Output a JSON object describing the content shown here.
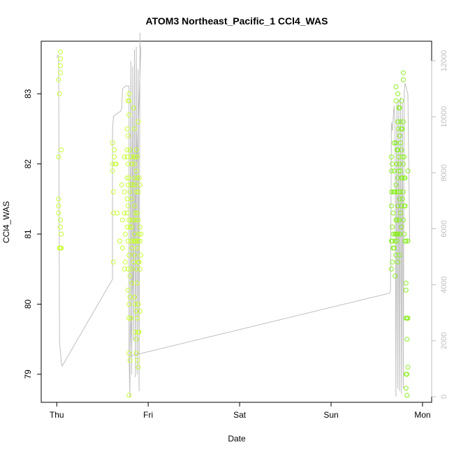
{
  "chart_data": {
    "type": "scatter",
    "title": "ATOM3 Northeast_Pacific_1 CCl4_WAS",
    "xlabel": "Date",
    "ylabel": "CCl4_WAS",
    "y2label": "",
    "x_ticks": [
      "Thu",
      "Fri",
      "Sat",
      "Sun",
      "Mon"
    ],
    "x_range_days": [
      -0.17,
      4.1
    ],
    "ylim": [
      78.6,
      83.75
    ],
    "y_ticks": [
      79,
      80,
      81,
      82,
      83
    ],
    "y2lim": [
      -200,
      12700
    ],
    "y2_ticks": [
      0,
      2000,
      4000,
      6000,
      8000,
      10000,
      12000
    ],
    "grid": false,
    "colors": {
      "altitude_line": "#bebebe",
      "points_low_alt": "#c8ff33",
      "points_high_alt": "#8aee22",
      "axis": "#000000",
      "y2_axis": "#bebebe"
    },
    "series": [
      {
        "type": "scatter",
        "axis": "left",
        "points": [
          [
            0.02,
            81.5
          ],
          [
            0.02,
            81.4
          ],
          [
            0.02,
            81.3
          ],
          [
            0.02,
            82.1
          ],
          [
            0.02,
            83.2
          ],
          [
            0.03,
            83.0
          ],
          [
            0.03,
            80.8
          ],
          [
            0.04,
            83.6
          ],
          [
            0.04,
            83.5
          ],
          [
            0.04,
            83.4
          ],
          [
            0.04,
            83.3
          ],
          [
            0.04,
            80.8
          ],
          [
            0.04,
            81.2
          ],
          [
            0.04,
            81.1
          ],
          [
            0.05,
            80.8
          ],
          [
            0.05,
            81.0
          ],
          [
            0.05,
            82.2
          ],
          [
            0.61,
            82.3
          ],
          [
            0.61,
            82.0
          ],
          [
            0.61,
            81.9
          ],
          [
            0.62,
            81.6
          ],
          [
            0.62,
            81.3
          ],
          [
            0.62,
            80.6
          ],
          [
            0.63,
            82.1
          ],
          [
            0.63,
            82.2
          ],
          [
            0.64,
            82.0
          ],
          [
            0.65,
            82.0
          ],
          [
            0.66,
            81.3
          ],
          [
            0.69,
            80.9
          ],
          [
            0.71,
            81.7
          ],
          [
            0.72,
            81.2
          ],
          [
            0.72,
            80.8
          ],
          [
            0.74,
            82.1
          ],
          [
            0.74,
            80.5
          ],
          [
            0.74,
            81.3
          ],
          [
            0.74,
            81.6
          ],
          [
            0.75,
            80.6
          ],
          [
            0.75,
            81.0
          ],
          [
            0.77,
            82.5
          ],
          [
            0.77,
            82.2
          ],
          [
            0.77,
            82.1
          ],
          [
            0.77,
            81.8
          ],
          [
            0.77,
            81.5
          ],
          [
            0.77,
            81.3
          ],
          [
            0.77,
            81.1
          ],
          [
            0.78,
            82.9
          ],
          [
            0.78,
            82.4
          ],
          [
            0.78,
            82.0
          ],
          [
            0.78,
            81.7
          ],
          [
            0.78,
            81.4
          ],
          [
            0.78,
            80.9
          ],
          [
            0.78,
            80.5
          ],
          [
            0.78,
            80.2
          ],
          [
            0.79,
            83.0
          ],
          [
            0.79,
            82.9
          ],
          [
            0.79,
            82.7
          ],
          [
            0.79,
            81.8
          ],
          [
            0.79,
            81.2
          ],
          [
            0.79,
            80.7
          ],
          [
            0.79,
            80.0
          ],
          [
            0.79,
            79.8
          ],
          [
            0.79,
            79.3
          ],
          [
            0.79,
            78.7
          ],
          [
            0.8,
            82.2
          ],
          [
            0.8,
            81.6
          ],
          [
            0.8,
            81.1
          ],
          [
            0.8,
            80.4
          ],
          [
            0.8,
            80.1
          ],
          [
            0.8,
            79.2
          ],
          [
            0.81,
            82.1
          ],
          [
            0.81,
            81.7
          ],
          [
            0.81,
            81.2
          ],
          [
            0.81,
            80.9
          ],
          [
            0.81,
            80.5
          ],
          [
            0.81,
            79.8
          ],
          [
            0.82,
            82.0
          ],
          [
            0.82,
            81.5
          ],
          [
            0.82,
            81.1
          ],
          [
            0.82,
            80.8
          ],
          [
            0.82,
            80.3
          ],
          [
            0.84,
            82.8
          ],
          [
            0.84,
            82.1
          ],
          [
            0.84,
            81.7
          ],
          [
            0.84,
            81.2
          ],
          [
            0.84,
            80.9
          ],
          [
            0.84,
            80.6
          ],
          [
            0.85,
            82.5
          ],
          [
            0.85,
            82.0
          ],
          [
            0.85,
            81.8
          ],
          [
            0.85,
            81.4
          ],
          [
            0.85,
            81.0
          ],
          [
            0.85,
            80.7
          ],
          [
            0.85,
            80.1
          ],
          [
            0.86,
            82.1
          ],
          [
            0.86,
            81.7
          ],
          [
            0.86,
            81.3
          ],
          [
            0.86,
            80.9
          ],
          [
            0.86,
            80.0
          ],
          [
            0.86,
            79.6
          ],
          [
            0.87,
            82.2
          ],
          [
            0.87,
            81.9
          ],
          [
            0.87,
            81.6
          ],
          [
            0.87,
            81.2
          ],
          [
            0.87,
            80.9
          ],
          [
            0.87,
            80.5
          ],
          [
            0.87,
            79.9
          ],
          [
            0.87,
            79.5
          ],
          [
            0.87,
            79.3
          ],
          [
            0.88,
            82.1
          ],
          [
            0.88,
            81.8
          ],
          [
            0.88,
            81.3
          ],
          [
            0.88,
            80.8
          ],
          [
            0.88,
            80.3
          ],
          [
            0.88,
            79.8
          ],
          [
            0.88,
            79.2
          ],
          [
            0.89,
            82.6
          ],
          [
            0.89,
            81.6
          ],
          [
            0.89,
            81.2
          ],
          [
            0.89,
            80.9
          ],
          [
            0.89,
            80.6
          ],
          [
            0.89,
            80.0
          ],
          [
            0.89,
            79.6
          ],
          [
            0.89,
            79.1
          ],
          [
            0.9,
            81.8
          ],
          [
            0.9,
            81.0
          ],
          [
            0.9,
            80.6
          ],
          [
            0.9,
            79.6
          ],
          [
            0.91,
            81.7
          ],
          [
            0.91,
            81.1
          ],
          [
            0.91,
            80.9
          ],
          [
            0.91,
            80.5
          ],
          [
            0.91,
            79.9
          ],
          [
            0.92,
            81.0
          ],
          [
            0.92,
            80.7
          ]
        ]
      },
      {
        "type": "scatter",
        "axis": "left",
        "points": [
          [
            3.66,
            82.1
          ],
          [
            3.66,
            81.9
          ],
          [
            3.66,
            81.6
          ],
          [
            3.66,
            81.4
          ],
          [
            3.66,
            80.9
          ],
          [
            3.66,
            80.5
          ],
          [
            3.67,
            82.0
          ],
          [
            3.67,
            81.1
          ],
          [
            3.67,
            80.9
          ],
          [
            3.67,
            80.6
          ],
          [
            3.68,
            81.6
          ],
          [
            3.68,
            81.3
          ],
          [
            3.68,
            81.0
          ],
          [
            3.68,
            80.8
          ],
          [
            3.69,
            82.3
          ],
          [
            3.69,
            81.9
          ],
          [
            3.69,
            81.6
          ],
          [
            3.69,
            80.8
          ],
          [
            3.7,
            81.6
          ],
          [
            3.7,
            81.0
          ],
          [
            3.7,
            80.9
          ],
          [
            3.7,
            80.4
          ],
          [
            3.71,
            83.1
          ],
          [
            3.71,
            82.9
          ],
          [
            3.71,
            82.3
          ],
          [
            3.71,
            81.7
          ],
          [
            3.71,
            81.2
          ],
          [
            3.71,
            81.0
          ],
          [
            3.71,
            80.7
          ],
          [
            3.72,
            82.2
          ],
          [
            3.72,
            82.0
          ],
          [
            3.72,
            81.6
          ],
          [
            3.72,
            81.2
          ],
          [
            3.72,
            81.0
          ],
          [
            3.72,
            80.9
          ],
          [
            3.73,
            83.0
          ],
          [
            3.73,
            82.6
          ],
          [
            3.73,
            82.2
          ],
          [
            3.73,
            81.8
          ],
          [
            3.73,
            81.4
          ],
          [
            3.73,
            81.0
          ],
          [
            3.73,
            80.6
          ],
          [
            3.74,
            82.8
          ],
          [
            3.74,
            82.5
          ],
          [
            3.74,
            82.1
          ],
          [
            3.74,
            81.9
          ],
          [
            3.74,
            81.6
          ],
          [
            3.74,
            81.2
          ],
          [
            3.75,
            82.8
          ],
          [
            3.75,
            82.4
          ],
          [
            3.75,
            82.0
          ],
          [
            3.75,
            81.5
          ],
          [
            3.75,
            81.0
          ],
          [
            3.75,
            80.7
          ],
          [
            3.76,
            82.6
          ],
          [
            3.76,
            82.3
          ],
          [
            3.76,
            81.9
          ],
          [
            3.76,
            81.6
          ],
          [
            3.76,
            81.3
          ],
          [
            3.77,
            82.9
          ],
          [
            3.77,
            82.5
          ],
          [
            3.77,
            82.2
          ],
          [
            3.77,
            81.8
          ],
          [
            3.77,
            81.4
          ],
          [
            3.77,
            81.1
          ],
          [
            3.78,
            82.5
          ],
          [
            3.78,
            82.1
          ],
          [
            3.78,
            81.8
          ],
          [
            3.78,
            81.5
          ],
          [
            3.79,
            83.3
          ],
          [
            3.79,
            83.2
          ],
          [
            3.79,
            82.6
          ],
          [
            3.79,
            82.0
          ],
          [
            3.79,
            81.6
          ],
          [
            3.79,
            81.2
          ],
          [
            3.8,
            82.1
          ],
          [
            3.8,
            81.8
          ],
          [
            3.8,
            81.4
          ],
          [
            3.8,
            81.0
          ],
          [
            3.81,
            81.8
          ],
          [
            3.81,
            81.4
          ],
          [
            3.81,
            80.9
          ],
          [
            3.82,
            80.9
          ],
          [
            3.82,
            80.3
          ],
          [
            3.82,
            80.2
          ],
          [
            3.82,
            79.8
          ],
          [
            3.82,
            79.0
          ],
          [
            3.82,
            78.8
          ],
          [
            3.83,
            79.8
          ],
          [
            3.83,
            79.5
          ],
          [
            3.83,
            79.0
          ],
          [
            3.83,
            78.7
          ],
          [
            3.84,
            81.9
          ],
          [
            3.84,
            80.9
          ],
          [
            3.84,
            79.8
          ],
          [
            3.84,
            79.1
          ]
        ]
      },
      {
        "type": "line",
        "axis": "right",
        "points": [
          [
            0.0,
            12100
          ],
          [
            0.01,
            12200
          ],
          [
            0.02,
            12180
          ],
          [
            0.03,
            2000
          ],
          [
            0.05,
            1200
          ],
          [
            0.06,
            1100
          ],
          [
            0.61,
            4200
          ],
          [
            0.61,
            9500
          ],
          [
            0.62,
            10000
          ],
          [
            0.65,
            10100
          ],
          [
            0.7,
            10200
          ],
          [
            0.71,
            10300
          ],
          [
            0.72,
            11000
          ],
          [
            0.75,
            11100
          ],
          [
            0.79,
            11100
          ],
          [
            0.79,
            1400
          ],
          [
            0.8,
            0
          ],
          [
            0.81,
            12000
          ],
          [
            0.82,
            800
          ],
          [
            0.83,
            11800
          ],
          [
            0.84,
            2000
          ],
          [
            0.85,
            12400
          ],
          [
            0.86,
            700
          ],
          [
            0.87,
            12500
          ],
          [
            0.88,
            800
          ],
          [
            0.89,
            11700
          ],
          [
            0.9,
            200
          ],
          [
            0.91,
            13000
          ],
          [
            0.91,
            12600
          ],
          [
            0.92,
            12400
          ],
          [
            0.8,
            1450
          ],
          [
            3.64,
            3700
          ],
          [
            3.65,
            3800
          ],
          [
            3.66,
            9800
          ],
          [
            3.67,
            9500
          ],
          [
            3.69,
            10400
          ],
          [
            3.7,
            9600
          ],
          [
            3.71,
            0
          ],
          [
            3.72,
            10500
          ],
          [
            3.73,
            300
          ],
          [
            3.74,
            10600
          ],
          [
            3.75,
            200
          ],
          [
            3.76,
            10700
          ],
          [
            3.77,
            100
          ],
          [
            3.78,
            10500
          ],
          [
            3.79,
            300
          ],
          [
            3.8,
            10900
          ],
          [
            3.81,
            11200
          ],
          [
            3.84,
            10800
          ],
          [
            3.86,
            5500
          ]
        ]
      }
    ]
  }
}
